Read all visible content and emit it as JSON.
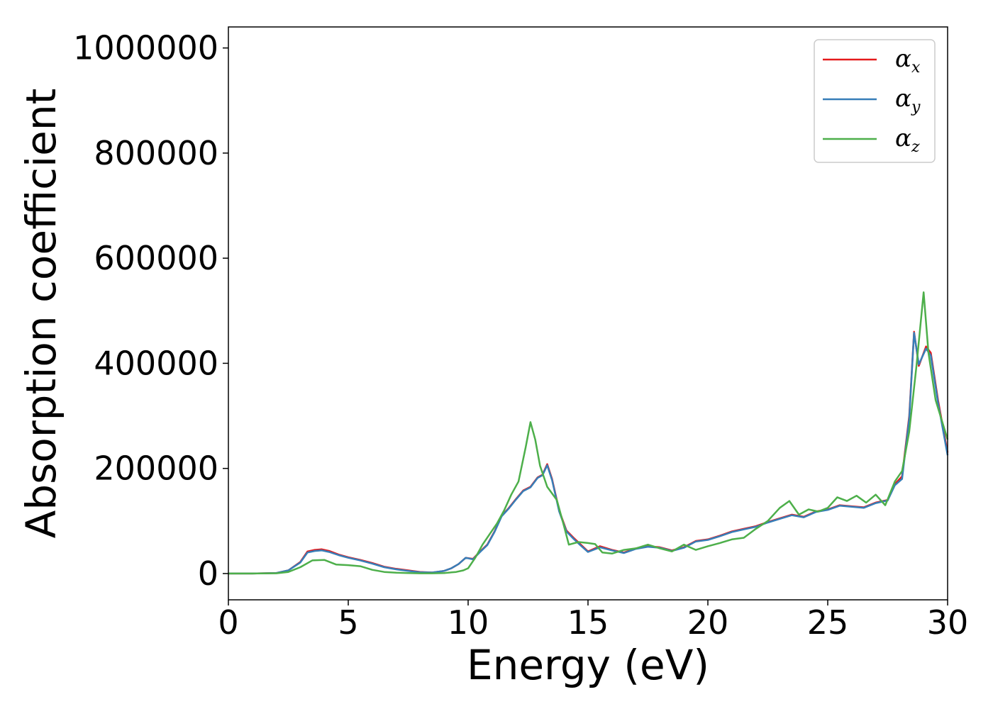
{
  "chart_data": {
    "type": "line",
    "title": "",
    "xlabel": "Energy (eV)",
    "ylabel": "Absorption coefficient",
    "xlim": [
      0,
      30
    ],
    "ylim": [
      -50000,
      1040000
    ],
    "xticks": [
      0,
      5,
      10,
      15,
      20,
      25,
      30
    ],
    "xtick_labels": [
      "0",
      "5",
      "10",
      "15",
      "20",
      "25",
      "30"
    ],
    "yticks": [
      0,
      200000,
      400000,
      600000,
      800000,
      1000000
    ],
    "ytick_labels": [
      "0",
      "200000",
      "400000",
      "600000",
      "800000",
      "1000000"
    ],
    "grid": false,
    "legend": "top-right",
    "series": [
      {
        "name": "α",
        "subscript": "x",
        "color": "#e41a1c",
        "x": [
          0,
          1,
          2,
          2.5,
          3,
          3.3,
          3.6,
          3.9,
          4.2,
          4.6,
          5,
          5.5,
          6,
          6.5,
          7,
          7.5,
          8,
          8.5,
          9,
          9.3,
          9.6,
          9.9,
          10.2,
          10.5,
          10.8,
          11.1,
          11.4,
          11.7,
          12,
          12.3,
          12.6,
          12.9,
          13.1,
          13.3,
          13.5,
          13.8,
          14.1,
          14.4,
          14.7,
          15,
          15.5,
          16,
          16.5,
          17,
          17.5,
          18,
          18.5,
          19,
          19.5,
          20,
          20.5,
          21,
          21.5,
          22,
          22.5,
          23,
          23.5,
          24,
          24.5,
          25,
          25.5,
          26,
          26.5,
          27,
          27.5,
          27.8,
          28.1,
          28.4,
          28.6,
          28.8,
          29.1,
          29.3,
          29.6,
          30
        ],
        "values": [
          0,
          0,
          1000,
          6000,
          22000,
          42000,
          45000,
          46000,
          43000,
          36000,
          31000,
          26000,
          20000,
          13000,
          9000,
          6000,
          3000,
          2000,
          5000,
          10000,
          18000,
          30000,
          28000,
          42000,
          55000,
          80000,
          110000,
          125000,
          142000,
          158000,
          165000,
          183000,
          188000,
          208000,
          180000,
          120000,
          82000,
          68000,
          55000,
          42000,
          52000,
          45000,
          40000,
          48000,
          52000,
          50000,
          44000,
          50000,
          62000,
          65000,
          72000,
          80000,
          85000,
          90000,
          98000,
          105000,
          112000,
          108000,
          118000,
          122000,
          130000,
          128000,
          126000,
          135000,
          140000,
          170000,
          185000,
          300000,
          460000,
          395000,
          432000,
          420000,
          330000,
          230000
        ]
      },
      {
        "name": "α",
        "subscript": "y",
        "color": "#377eb8",
        "x": [
          0,
          1,
          2,
          2.5,
          3,
          3.3,
          3.6,
          3.9,
          4.2,
          4.6,
          5,
          5.5,
          6,
          6.5,
          7,
          7.5,
          8,
          8.5,
          9,
          9.3,
          9.6,
          9.9,
          10.2,
          10.5,
          10.8,
          11.1,
          11.4,
          11.7,
          12,
          12.3,
          12.6,
          12.9,
          13.1,
          13.3,
          13.5,
          13.8,
          14.1,
          14.4,
          14.7,
          15,
          15.5,
          16,
          16.5,
          17,
          17.5,
          18,
          18.5,
          19,
          19.5,
          20,
          20.5,
          21,
          21.5,
          22,
          22.5,
          23,
          23.5,
          24,
          24.5,
          25,
          25.5,
          26,
          26.5,
          27,
          27.5,
          27.8,
          28.1,
          28.4,
          28.6,
          28.8,
          29.1,
          29.3,
          29.6,
          30
        ],
        "values": [
          0,
          0,
          1000,
          6000,
          21000,
          40000,
          43000,
          44000,
          41000,
          35000,
          30000,
          25000,
          19000,
          12000,
          8000,
          5000,
          2500,
          2000,
          5000,
          10000,
          18000,
          30000,
          27000,
          41000,
          54000,
          79000,
          109000,
          124000,
          141000,
          157000,
          164000,
          182000,
          187000,
          206000,
          178000,
          118000,
          80000,
          66000,
          53000,
          41000,
          50000,
          44000,
          39000,
          47000,
          51000,
          49000,
          43000,
          49000,
          61000,
          64000,
          71000,
          79000,
          84000,
          89000,
          97000,
          104000,
          111000,
          107000,
          117000,
          121000,
          129000,
          127000,
          125000,
          134000,
          139000,
          168000,
          180000,
          295000,
          458000,
          398000,
          428000,
          415000,
          325000,
          225000
        ]
      },
      {
        "name": "α",
        "subscript": "z",
        "color": "#4daf4a",
        "x": [
          0,
          1,
          2,
          2.5,
          3,
          3.5,
          4,
          4.5,
          5,
          5.5,
          6,
          6.5,
          7,
          7.5,
          8,
          8.5,
          9,
          9.5,
          9.8,
          10,
          10.3,
          10.6,
          10.9,
          11.2,
          11.5,
          11.8,
          12.1,
          12.4,
          12.6,
          12.8,
          13,
          13.3,
          13.7,
          14,
          14.2,
          14.6,
          15,
          15.3,
          15.6,
          16,
          16.5,
          17,
          17.5,
          18,
          18.5,
          19,
          19.5,
          20,
          20.5,
          21,
          21.5,
          22,
          22.5,
          23,
          23.4,
          23.8,
          24.2,
          24.6,
          25,
          25.4,
          25.8,
          26.2,
          26.6,
          27,
          27.4,
          27.8,
          28.1,
          28.4,
          28.7,
          29,
          29.2,
          29.5,
          30
        ],
        "values": [
          0,
          0,
          500,
          3000,
          12000,
          25000,
          26000,
          17000,
          16000,
          14000,
          7000,
          3000,
          1500,
          1000,
          500,
          500,
          1000,
          3000,
          6000,
          10000,
          30000,
          55000,
          75000,
          95000,
          120000,
          150000,
          175000,
          240000,
          288000,
          255000,
          205000,
          165000,
          140000,
          90000,
          55000,
          60000,
          58000,
          56000,
          40000,
          38000,
          45000,
          48000,
          55000,
          48000,
          42000,
          55000,
          45000,
          52000,
          58000,
          65000,
          68000,
          85000,
          100000,
          125000,
          138000,
          112000,
          122000,
          118000,
          125000,
          145000,
          138000,
          148000,
          135000,
          150000,
          130000,
          175000,
          195000,
          270000,
          395000,
          535000,
          420000,
          330000,
          255000
        ]
      }
    ]
  }
}
